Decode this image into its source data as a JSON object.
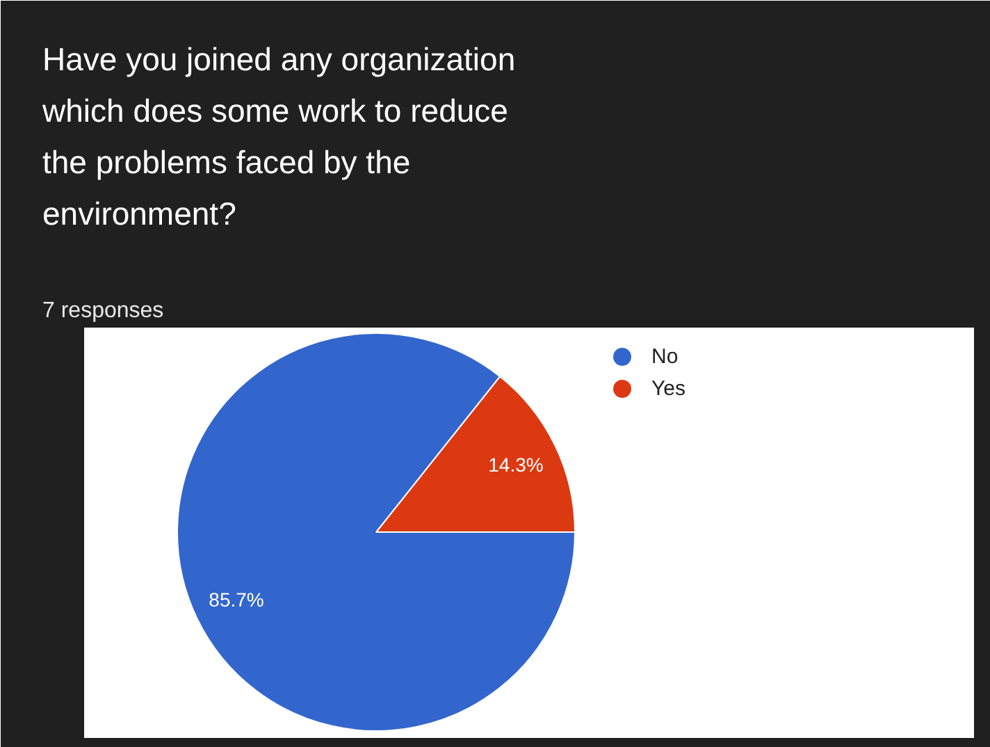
{
  "chart_data": {
    "type": "pie",
    "title": "Have you joined any organization which does some work to reduce the problems faced by the environment?",
    "subtitle": "7 responses",
    "categories": [
      "No",
      "Yes"
    ],
    "values": [
      85.7,
      14.3
    ],
    "colors": [
      "#3366cc",
      "#dc3912"
    ],
    "value_labels": [
      "85.7%",
      "14.3%"
    ],
    "legend": "top right"
  }
}
